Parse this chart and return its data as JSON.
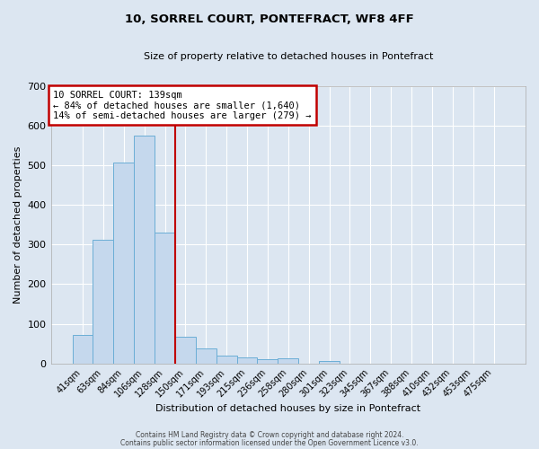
{
  "title": "10, SORREL COURT, PONTEFRACT, WF8 4FF",
  "subtitle": "Size of property relative to detached houses in Pontefract",
  "xlabel": "Distribution of detached houses by size in Pontefract",
  "ylabel": "Number of detached properties",
  "bar_labels": [
    "41sqm",
    "63sqm",
    "84sqm",
    "106sqm",
    "128sqm",
    "150sqm",
    "171sqm",
    "193sqm",
    "215sqm",
    "236sqm",
    "258sqm",
    "280sqm",
    "301sqm",
    "323sqm",
    "345sqm",
    "367sqm",
    "388sqm",
    "410sqm",
    "432sqm",
    "453sqm",
    "475sqm"
  ],
  "bar_values": [
    72,
    312,
    507,
    575,
    330,
    68,
    38,
    20,
    15,
    10,
    12,
    0,
    7,
    0,
    0,
    0,
    0,
    0,
    0,
    0,
    0
  ],
  "bar_color": "#c5d8ed",
  "bar_edgecolor": "#6baed6",
  "vline_color": "#c00000",
  "annotation_title": "10 SORREL COURT: 139sqm",
  "annotation_line1": "← 84% of detached houses are smaller (1,640)",
  "annotation_line2": "14% of semi-detached houses are larger (279) →",
  "annotation_box_color": "#c00000",
  "ylim": [
    0,
    700
  ],
  "yticks": [
    0,
    100,
    200,
    300,
    400,
    500,
    600,
    700
  ],
  "plot_bg_color": "#dce6f1",
  "fig_bg_color": "#dce6f1",
  "grid_color": "#ffffff",
  "footer1": "Contains HM Land Registry data © Crown copyright and database right 2024.",
  "footer2": "Contains public sector information licensed under the Open Government Licence v3.0."
}
